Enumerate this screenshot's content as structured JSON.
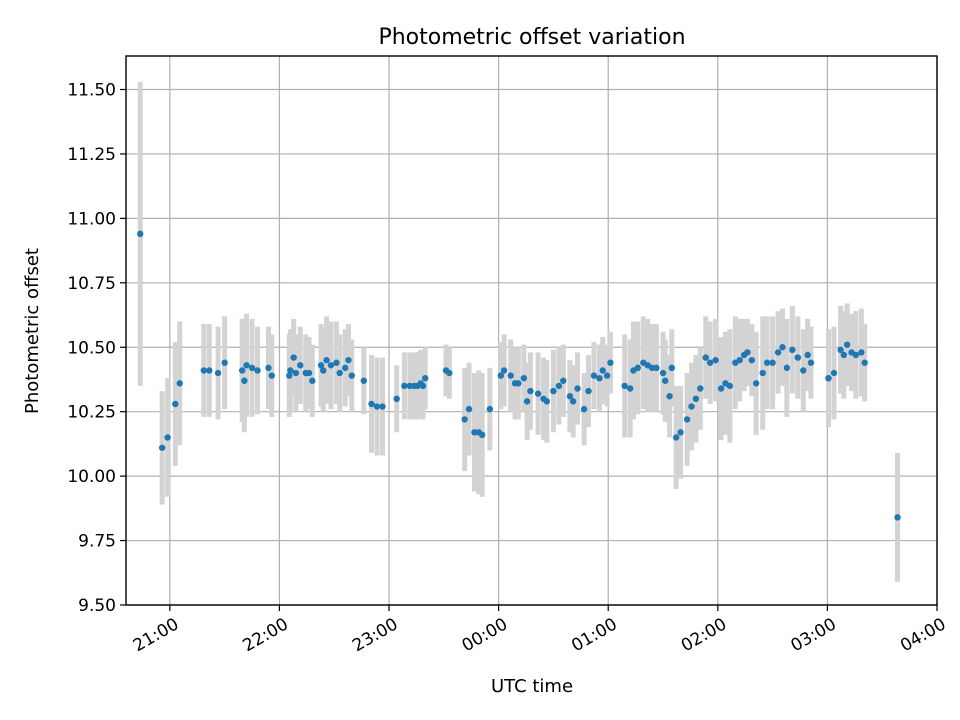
{
  "chart_data": {
    "type": "scatter",
    "title": "Photometric offset variation",
    "xlabel": "UTC time",
    "ylabel": "Photometric offset",
    "grid": true,
    "legend": "none",
    "x_ticks": [
      {
        "label": "21:00",
        "hours": 21.0
      },
      {
        "label": "22:00",
        "hours": 22.0
      },
      {
        "label": "23:00",
        "hours": 23.0
      },
      {
        "label": "00:00",
        "hours": 24.0
      },
      {
        "label": "01:00",
        "hours": 25.0
      },
      {
        "label": "02:00",
        "hours": 26.0
      },
      {
        "label": "03:00",
        "hours": 27.0
      },
      {
        "label": "04:00",
        "hours": 28.0
      }
    ],
    "xlim_hours": [
      20.6,
      28.0
    ],
    "ylim": [
      9.5,
      11.63
    ],
    "y_ticks": [
      "9.50",
      "9.75",
      "10.00",
      "10.25",
      "10.50",
      "10.75",
      "11.00",
      "11.25",
      "11.50"
    ],
    "colors": {
      "points": "#1f77b4",
      "error_bars": "#d3d3d3"
    },
    "series": [
      {
        "x_hours": [
          20.73,
          20.93,
          20.98,
          21.05,
          21.09,
          21.31,
          21.36,
          21.44,
          21.5,
          21.66,
          21.68,
          21.7,
          21.75,
          21.8,
          21.9,
          21.93,
          22.09,
          22.1,
          22.13,
          22.15,
          22.19,
          22.24,
          22.27,
          22.3,
          22.38,
          22.4,
          22.43,
          22.47,
          22.52,
          22.55,
          22.6,
          22.63,
          22.66,
          22.77,
          22.84,
          22.89,
          22.94,
          23.07,
          23.14,
          23.19,
          23.23,
          23.26,
          23.29,
          23.31,
          23.33,
          23.52,
          23.55,
          23.69,
          23.73,
          23.78,
          23.82,
          23.85,
          23.92,
          24.02,
          24.05,
          24.11,
          24.15,
          24.18,
          24.23,
          24.26,
          24.29,
          24.36,
          24.41,
          24.44,
          24.5,
          24.55,
          24.59,
          24.65,
          24.68,
          24.72,
          24.78,
          24.82,
          24.87,
          24.92,
          24.95,
          24.99,
          25.02,
          25.15,
          25.2,
          25.23,
          25.27,
          25.32,
          25.36,
          25.4,
          25.44,
          25.5,
          25.52,
          25.56,
          25.58,
          25.62,
          25.66,
          25.72,
          25.76,
          25.8,
          25.84,
          25.89,
          25.93,
          25.98,
          26.03,
          26.07,
          26.11,
          26.16,
          26.2,
          26.24,
          26.27,
          26.31,
          26.35,
          26.41,
          26.45,
          26.5,
          26.55,
          26.59,
          26.63,
          26.68,
          26.73,
          26.78,
          26.82,
          26.85,
          27.01,
          27.06,
          27.12,
          27.15,
          27.18,
          27.22,
          27.26,
          27.31,
          27.34,
          27.64
        ],
        "y": [
          10.94,
          10.11,
          10.15,
          10.28,
          10.36,
          10.41,
          10.41,
          10.4,
          10.44,
          10.41,
          10.37,
          10.43,
          10.42,
          10.41,
          10.42,
          10.39,
          10.39,
          10.41,
          10.46,
          10.4,
          10.43,
          10.4,
          10.4,
          10.37,
          10.43,
          10.41,
          10.45,
          10.43,
          10.44,
          10.4,
          10.42,
          10.45,
          10.39,
          10.37,
          10.28,
          10.27,
          10.27,
          10.3,
          10.35,
          10.35,
          10.35,
          10.35,
          10.36,
          10.35,
          10.38,
          10.41,
          10.4,
          10.22,
          10.26,
          10.17,
          10.17,
          10.16,
          10.26,
          10.39,
          10.41,
          10.39,
          10.36,
          10.36,
          10.38,
          10.29,
          10.33,
          10.32,
          10.3,
          10.29,
          10.33,
          10.35,
          10.37,
          10.31,
          10.29,
          10.34,
          10.26,
          10.33,
          10.39,
          10.38,
          10.41,
          10.39,
          10.44,
          10.35,
          10.34,
          10.41,
          10.42,
          10.44,
          10.43,
          10.42,
          10.42,
          10.4,
          10.37,
          10.31,
          10.42,
          10.15,
          10.17,
          10.22,
          10.27,
          10.3,
          10.34,
          10.46,
          10.44,
          10.45,
          10.34,
          10.36,
          10.35,
          10.44,
          10.45,
          10.47,
          10.48,
          10.45,
          10.36,
          10.4,
          10.44,
          10.44,
          10.48,
          10.5,
          10.42,
          10.49,
          10.46,
          10.41,
          10.47,
          10.44,
          10.38,
          10.4,
          10.49,
          10.47,
          10.51,
          10.48,
          10.47,
          10.48,
          10.44,
          9.84
        ],
        "err": [
          0.59,
          0.22,
          0.23,
          0.24,
          0.24,
          0.18,
          0.18,
          0.18,
          0.18,
          0.2,
          0.2,
          0.2,
          0.19,
          0.17,
          0.16,
          0.16,
          0.16,
          0.16,
          0.15,
          0.15,
          0.15,
          0.15,
          0.14,
          0.14,
          0.16,
          0.16,
          0.17,
          0.17,
          0.16,
          0.15,
          0.15,
          0.14,
          0.14,
          0.13,
          0.19,
          0.19,
          0.19,
          0.13,
          0.13,
          0.13,
          0.13,
          0.13,
          0.13,
          0.13,
          0.12,
          0.1,
          0.1,
          0.2,
          0.18,
          0.23,
          0.24,
          0.24,
          0.16,
          0.13,
          0.14,
          0.14,
          0.14,
          0.14,
          0.13,
          0.15,
          0.15,
          0.16,
          0.16,
          0.16,
          0.16,
          0.15,
          0.14,
          0.14,
          0.14,
          0.14,
          0.14,
          0.14,
          0.13,
          0.13,
          0.13,
          0.12,
          0.12,
          0.2,
          0.19,
          0.19,
          0.18,
          0.18,
          0.18,
          0.17,
          0.17,
          0.16,
          0.16,
          0.16,
          0.15,
          0.2,
          0.18,
          0.18,
          0.17,
          0.17,
          0.16,
          0.16,
          0.16,
          0.16,
          0.2,
          0.2,
          0.22,
          0.18,
          0.16,
          0.14,
          0.13,
          0.14,
          0.2,
          0.22,
          0.18,
          0.18,
          0.16,
          0.15,
          0.19,
          0.17,
          0.16,
          0.16,
          0.14,
          0.14,
          0.19,
          0.18,
          0.17,
          0.17,
          0.16,
          0.15,
          0.17,
          0.17,
          0.15,
          0.25
        ]
      }
    ]
  }
}
